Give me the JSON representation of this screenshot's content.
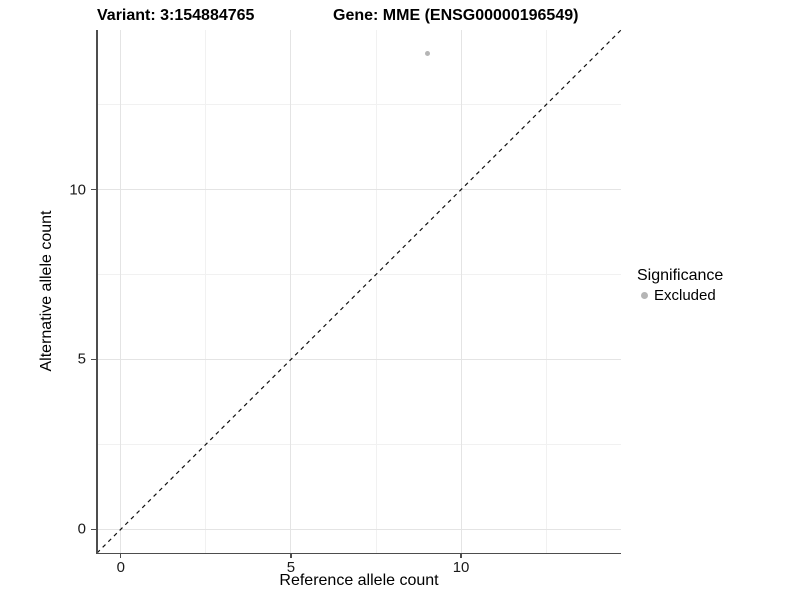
{
  "figure": {
    "title_left": "Variant: 3:154884765",
    "title_right": "Gene: MME (ENSG00000196549)"
  },
  "axes": {
    "x_label": "Reference allele count",
    "y_label": "Alternative allele count"
  },
  "legend": {
    "title": "Significance",
    "items": [
      {
        "label": "Excluded",
        "color": "#b5b5b5"
      }
    ]
  },
  "chart_data": {
    "type": "scatter",
    "title": "Variant: 3:154884765  |  Gene: MME (ENSG00000196549)",
    "xlabel": "Reference allele count",
    "ylabel": "Alternative allele count",
    "xlim": [
      -0.7,
      14.7
    ],
    "ylim": [
      -0.7,
      14.7
    ],
    "x_ticks": [
      0,
      5,
      10
    ],
    "y_ticks": [
      0,
      5,
      10
    ],
    "x_minor_ticks": [
      2.5,
      7.5,
      12.5
    ],
    "y_minor_ticks": [
      2.5,
      7.5,
      12.5
    ],
    "grid": true,
    "series": [
      {
        "name": "Excluded",
        "color": "#b5b5b5",
        "points": [
          {
            "x": 9,
            "y": 14
          }
        ]
      }
    ],
    "reference_line": {
      "description": "identity line y = x",
      "from": [
        -0.7,
        -0.7
      ],
      "to": [
        14.7,
        14.7
      ],
      "style": "dashed",
      "color": "#111111"
    },
    "legend": {
      "title": "Significance",
      "position": "right",
      "entries": [
        "Excluded"
      ]
    }
  }
}
